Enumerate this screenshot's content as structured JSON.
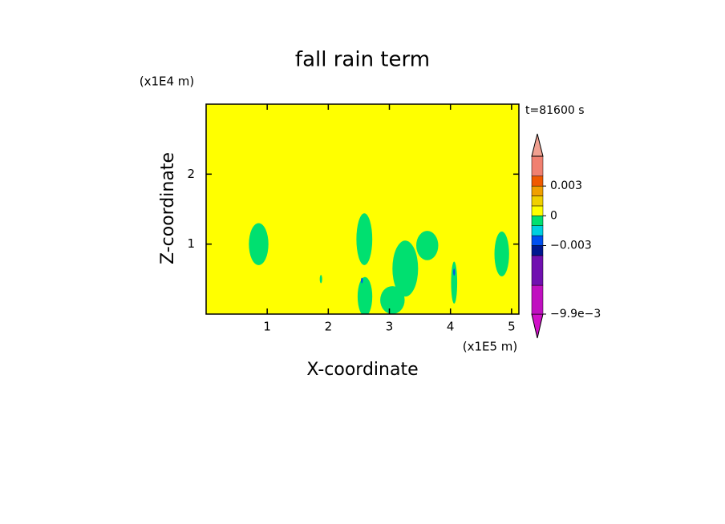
{
  "chart_data": {
    "type": "contour",
    "title": "fall rain term",
    "x_label": "X-coordinate",
    "y_label": "Z-coordinate",
    "x_unit": "(x1E5 m)",
    "y_unit": "(x1E4 m)",
    "time_label": "t=81600 s",
    "xlim": [
      0,
      5.12
    ],
    "ylim": [
      0,
      3
    ],
    "xticks": [
      1,
      2,
      3,
      4,
      5
    ],
    "yticks": [
      1,
      2
    ],
    "background_value": 0.0005,
    "patches": [
      {
        "x": 0.86,
        "z": 1.0,
        "rx": 0.16,
        "rz": 0.3,
        "value": -0.0005
      },
      {
        "x": 2.59,
        "z": 1.07,
        "rx": 0.13,
        "rz": 0.37,
        "value": -0.0005
      },
      {
        "x": 3.26,
        "z": 0.65,
        "rx": 0.21,
        "rz": 0.4,
        "value": -0.0005
      },
      {
        "x": 3.62,
        "z": 0.98,
        "rx": 0.18,
        "rz": 0.21,
        "value": -0.0005
      },
      {
        "x": 4.84,
        "z": 0.86,
        "rx": 0.12,
        "rz": 0.32,
        "value": -0.0005
      },
      {
        "x": 2.6,
        "z": 0.25,
        "rx": 0.12,
        "rz": 0.28,
        "value": -0.0005
      },
      {
        "x": 3.05,
        "z": 0.2,
        "rx": 0.2,
        "rz": 0.2,
        "value": -0.0005
      },
      {
        "x": 4.06,
        "z": 0.45,
        "rx": 0.05,
        "rz": 0.3,
        "value": -0.0005
      },
      {
        "x": 1.88,
        "z": 0.5,
        "rx": 0.02,
        "rz": 0.06,
        "value": -0.0005
      },
      {
        "x": 4.06,
        "z": 0.6,
        "rx": 0.015,
        "rz": 0.05,
        "value": -0.0025
      },
      {
        "x": 2.55,
        "z": 0.48,
        "rx": 0.015,
        "rz": 0.04,
        "value": -0.0025
      }
    ],
    "levels": [
      -0.0099,
      -0.007,
      -0.004,
      -0.003,
      -0.002,
      -0.001,
      0,
      0.001,
      0.002,
      0.003,
      0.004,
      0.006
    ],
    "colors": [
      "#d010c8",
      "#c010c0",
      "#7010b0",
      "#001890",
      "#0050f0",
      "#00d0e0",
      "#00e070",
      "#ffff00",
      "#f0d000",
      "#f0a000",
      "#f05a00",
      "#f08070",
      "#f0a090"
    ],
    "colorbar_ticks": [
      0.003,
      0,
      {
        "value": -0.003,
        "label": "−0.003"
      },
      {
        "value": -0.0099,
        "label": "−9.9e−3"
      }
    ]
  }
}
